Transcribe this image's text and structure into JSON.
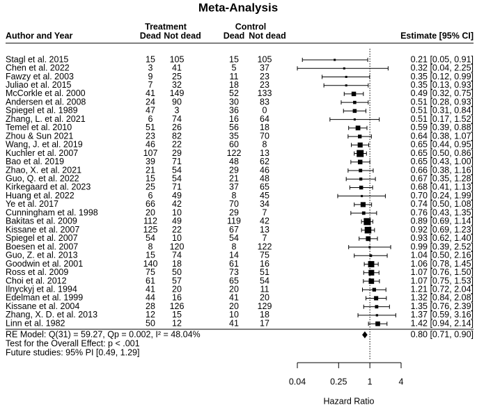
{
  "chart_data": {
    "type": "forest",
    "title": "Meta-Analysis",
    "author_header": "Author and Year",
    "treatment_header": "Treatment",
    "control_header": "Control",
    "treatment_columns": [
      "Dead",
      "Not dead"
    ],
    "control_columns": [
      "Dead",
      "Not dead"
    ],
    "estimate_header": "Estimate [95% CI]",
    "categories": [
      "Stagl et al. 2015",
      "Chen et al. 2022",
      "Fawzy et al. 2003",
      "Juliao et al. 2015",
      "McCorkle et al. 2000",
      "Andersen et al. 2008",
      "Spiegel et al. 1989",
      "Zhang, L. et al. 2021",
      "Temel et al. 2010",
      "Zhou & Sun 2021",
      "Wang, J. et al. 2019",
      "Kuchler et al. 2007",
      "Bao et al. 2019",
      "Zhao, X. et al. 2021",
      "Guo, Q. et al. 2022",
      "Kirkegaard et al. 2023",
      "Huang et al. 2022",
      "Ye et al. 2017",
      "Cunningham et al. 1998",
      "Bakitas et al. 2009",
      "Kissane et al. 2007",
      "Spiegel et al. 2007",
      "Boesen et al. 2007",
      "Guo, Z. et al. 2013",
      "Goodwin et al. 2001",
      "Ross et al. 2009",
      "Choi et al. 2012",
      "Ilnyckyj et al. 1994",
      "Edelman et al. 1999",
      "Kissane et al. 2004",
      "Zhang, X. D. et al. 2013",
      "Linn et al. 1982"
    ],
    "treatment_dead": [
      15,
      3,
      9,
      7,
      41,
      24,
      47,
      6,
      51,
      23,
      46,
      107,
      39,
      21,
      15,
      25,
      6,
      66,
      20,
      112,
      125,
      54,
      8,
      15,
      140,
      75,
      61,
      41,
      44,
      28,
      12,
      50
    ],
    "treatment_not_dead": [
      105,
      41,
      25,
      32,
      149,
      90,
      3,
      74,
      26,
      82,
      22,
      29,
      71,
      54,
      54,
      71,
      49,
      42,
      10,
      49,
      22,
      10,
      120,
      74,
      18,
      50,
      57,
      20,
      16,
      126,
      15,
      12
    ],
    "control_dead": [
      15,
      5,
      11,
      18,
      52,
      30,
      36,
      16,
      56,
      35,
      60,
      122,
      48,
      29,
      21,
      37,
      8,
      70,
      29,
      119,
      67,
      54,
      8,
      14,
      61,
      73,
      65,
      20,
      41,
      20,
      10,
      41
    ],
    "control_not_dead": [
      105,
      37,
      23,
      23,
      133,
      83,
      0,
      64,
      18,
      70,
      8,
      13,
      62,
      46,
      48,
      65,
      45,
      34,
      7,
      42,
      13,
      7,
      122,
      75,
      16,
      51,
      54,
      11,
      20,
      129,
      18,
      17
    ],
    "values": [
      0.21,
      0.32,
      0.35,
      0.35,
      0.49,
      0.51,
      0.51,
      0.51,
      0.59,
      0.64,
      0.65,
      0.65,
      0.65,
      0.66,
      0.67,
      0.68,
      0.7,
      0.74,
      0.76,
      0.89,
      0.92,
      0.93,
      0.99,
      1.04,
      1.06,
      1.07,
      1.07,
      1.21,
      1.32,
      1.35,
      1.37,
      1.42
    ],
    "lower": [
      0.05,
      0.04,
      0.12,
      0.13,
      0.32,
      0.28,
      0.31,
      0.17,
      0.39,
      0.38,
      0.44,
      0.5,
      0.43,
      0.38,
      0.35,
      0.41,
      0.24,
      0.5,
      0.43,
      0.69,
      0.69,
      0.62,
      0.39,
      0.5,
      0.78,
      0.76,
      0.75,
      0.72,
      0.84,
      0.76,
      0.59,
      0.94
    ],
    "upper": [
      0.91,
      2.25,
      0.99,
      0.93,
      0.75,
      0.93,
      0.84,
      1.52,
      0.88,
      1.07,
      0.95,
      0.86,
      1.0,
      1.16,
      1.28,
      1.13,
      1.99,
      1.08,
      1.35,
      1.14,
      1.23,
      1.4,
      2.52,
      2.16,
      1.45,
      1.5,
      1.53,
      2.04,
      2.08,
      2.39,
      3.16,
      2.14
    ],
    "value_labels": [
      "0.21 [0.05, 0.91]",
      "0.32 [0.04, 2.25]",
      "0.35 [0.12, 0.99]",
      "0.35 [0.13, 0.93]",
      "0.49 [0.32, 0.75]",
      "0.51 [0.28, 0.93]",
      "0.51 [0.31, 0.84]",
      "0.51 [0.17, 1.52]",
      "0.59 [0.39, 0.88]",
      "0.64 [0.38, 1.07]",
      "0.65 [0.44, 0.95]",
      "0.65 [0.50, 0.86]",
      "0.65 [0.43, 1.00]",
      "0.66 [0.38, 1.16]",
      "0.67 [0.35, 1.28]",
      "0.68 [0.41, 1.13]",
      "0.70 [0.24, 1.99]",
      "0.74 [0.50, 1.08]",
      "0.76 [0.43, 1.35]",
      "0.89 [0.69, 1.14]",
      "0.92 [0.69, 1.23]",
      "0.93 [0.62, 1.40]",
      "0.99 [0.39, 2.52]",
      "1.04 [0.50, 2.16]",
      "1.06 [0.78, 1.45]",
      "1.07 [0.76, 1.50]",
      "1.07 [0.75, 1.53]",
      "1.21 [0.72, 2.04]",
      "1.32 [0.84, 2.08]",
      "1.35 [0.76, 2.39]",
      "1.37 [0.59, 3.16]",
      "1.42 [0.94, 2.14]"
    ],
    "summary": {
      "label": "RE Model: Q(31) = 59.27, Qp = 0.002, I² = 48.04%",
      "value": 0.8,
      "lower": 0.71,
      "upper": 0.9,
      "value_label": "0.80 [0.71, 0.90]"
    },
    "overall_test": "Test for the Overall Effect: p < .001",
    "prediction_interval": "Future studies: 95% PI [0.49, 1.29]",
    "reference_line": 1,
    "xlabel": "Hazard Ratio",
    "xscale": "log",
    "xlim": [
      0.04,
      4
    ],
    "xticks": [
      0.04,
      0.25,
      1,
      4
    ],
    "color": "#000000"
  }
}
